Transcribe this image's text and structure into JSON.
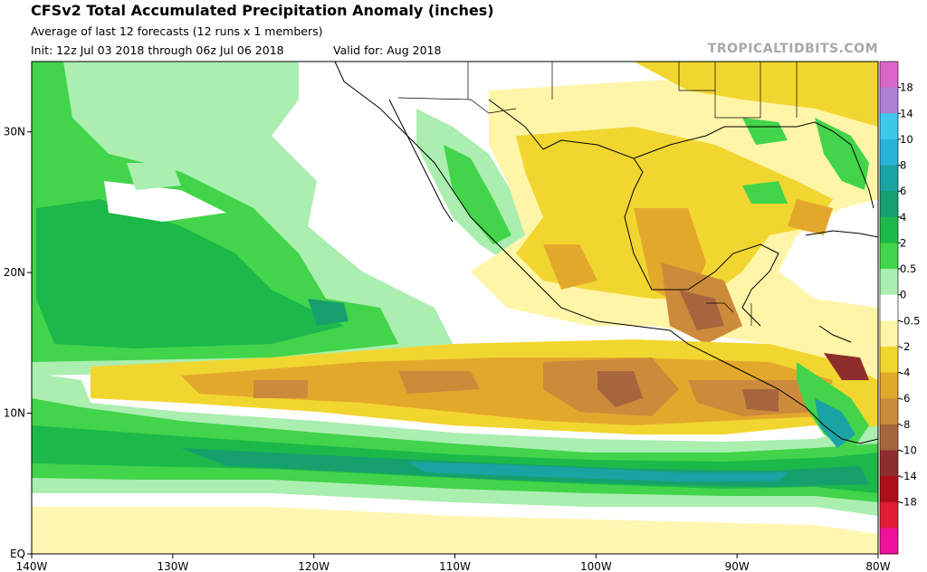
{
  "header": {
    "title": "CFSv2 Total Accumulated Precipitation Anomaly (inches)",
    "subtitle": "Average of last 12 forecasts (12 runs x 1 members)",
    "init": "Init: 12z Jul 03 2018 through 06z Jul 06 2018",
    "valid": "Valid for: Aug 2018",
    "source": "TROPICALTIDBITS.COM"
  },
  "map": {
    "lon_range": [
      -140,
      -80
    ],
    "lat_range": [
      0,
      35
    ],
    "lon_ticks": [
      {
        "value": -140,
        "label": "140W"
      },
      {
        "value": -130,
        "label": "130W"
      },
      {
        "value": -120,
        "label": "120W"
      },
      {
        "value": -110,
        "label": "110W"
      },
      {
        "value": -100,
        "label": "100W"
      },
      {
        "value": -90,
        "label": "90W"
      },
      {
        "value": -80,
        "label": "80W"
      }
    ],
    "lat_ticks": [
      {
        "value": 0,
        "label": "EQ"
      },
      {
        "value": 10,
        "label": "10N"
      },
      {
        "value": 20,
        "label": "20N"
      },
      {
        "value": 30,
        "label": "30N"
      }
    ]
  },
  "colorbar": {
    "levels": [
      {
        "label": "18",
        "color": "#b07fd6"
      },
      {
        "label": "14",
        "color": "#3dc8ec"
      },
      {
        "label": "10",
        "color": "#2ab3d8"
      },
      {
        "label": "8",
        "color": "#1aa3a3"
      },
      {
        "label": "6",
        "color": "#16a06e"
      },
      {
        "label": "4",
        "color": "#1db84a"
      },
      {
        "label": "2",
        "color": "#42d44a"
      },
      {
        "label": "0.5",
        "color": "#aaeeb0"
      },
      {
        "label": "0",
        "color": "#ffffff"
      },
      {
        "label": "-0.5",
        "color": "#fff5a8"
      },
      {
        "label": "-2",
        "color": "#f2d630"
      },
      {
        "label": "-4",
        "color": "#e2a82c"
      },
      {
        "label": "-6",
        "color": "#cc8b3a"
      },
      {
        "label": "-8",
        "color": "#a7653e"
      },
      {
        "label": "-10",
        "color": "#8d2d2d"
      },
      {
        "label": "-14",
        "color": "#aa0f1a"
      },
      {
        "label": "-18",
        "color": "#e01c34"
      }
    ],
    "top_color": "#d967c6",
    "bottom_color": "#f0109a"
  }
}
